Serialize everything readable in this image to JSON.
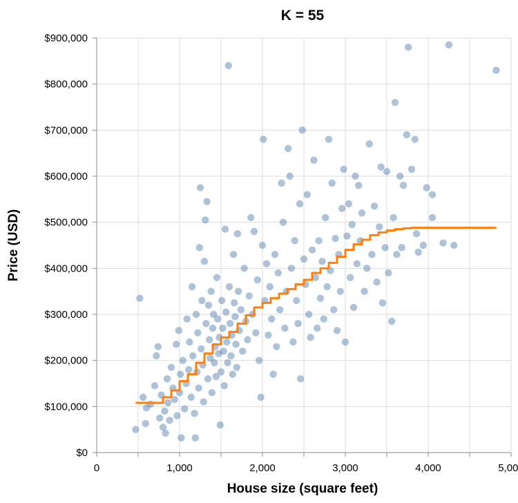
{
  "chart_data": {
    "type": "scatter",
    "title": "K = 55",
    "xlabel": "House size (square feet)",
    "ylabel": "Price (USD)",
    "xlim": [
      0,
      5000
    ],
    "ylim": [
      0,
      900000
    ],
    "grid": true,
    "x_ticks": [
      0,
      1000,
      2000,
      3000,
      4000,
      5000
    ],
    "x_tick_labels": [
      "0",
      "1,000",
      "2,000",
      "3,000",
      "4,000",
      "5,000"
    ],
    "y_ticks": [
      0,
      100000,
      200000,
      300000,
      400000,
      500000,
      600000,
      700000,
      800000,
      900000
    ],
    "y_tick_labels": [
      "$0",
      "$100,000",
      "$200,000",
      "$300,000",
      "$400,000",
      "$500,000",
      "$600,000",
      "$700,000",
      "$800,000",
      "$900,000"
    ],
    "colors": {
      "points": "#4c78a8",
      "line": "#ff7f0e",
      "grid": "#dddddd",
      "axis": "#888888"
    },
    "series": [
      {
        "type": "scatter",
        "points": [
          [
            470,
            50000
          ],
          [
            520,
            335000
          ],
          [
            560,
            120000
          ],
          [
            590,
            63000
          ],
          [
            600,
            97000
          ],
          [
            650,
            105000
          ],
          [
            700,
            145000
          ],
          [
            720,
            210000
          ],
          [
            740,
            230000
          ],
          [
            760,
            75000
          ],
          [
            780,
            125000
          ],
          [
            800,
            55000
          ],
          [
            820,
            90000
          ],
          [
            830,
            42000
          ],
          [
            850,
            160000
          ],
          [
            860,
            108000
          ],
          [
            880,
            70000
          ],
          [
            900,
            185000
          ],
          [
            920,
            140000
          ],
          [
            940,
            115000
          ],
          [
            960,
            235000
          ],
          [
            970,
            80000
          ],
          [
            990,
            265000
          ],
          [
            1000,
            130000
          ],
          [
            1010,
            170000
          ],
          [
            1020,
            32000
          ],
          [
            1040,
            200000
          ],
          [
            1060,
            95000
          ],
          [
            1080,
            150000
          ],
          [
            1090,
            290000
          ],
          [
            1110,
            180000
          ],
          [
            1120,
            240000
          ],
          [
            1140,
            120000
          ],
          [
            1150,
            360000
          ],
          [
            1160,
            210000
          ],
          [
            1180,
            85000
          ],
          [
            1190,
            32000
          ],
          [
            1200,
            300000
          ],
          [
            1210,
            175000
          ],
          [
            1220,
            260000
          ],
          [
            1230,
            140000
          ],
          [
            1240,
            445000
          ],
          [
            1250,
            575000
          ],
          [
            1260,
            225000
          ],
          [
            1270,
            330000
          ],
          [
            1280,
            190000
          ],
          [
            1290,
            110000
          ],
          [
            1300,
            415000
          ],
          [
            1310,
            505000
          ],
          [
            1320,
            280000
          ],
          [
            1330,
            545000
          ],
          [
            1340,
            160000
          ],
          [
            1350,
            320000
          ],
          [
            1360,
            245000
          ],
          [
            1370,
            205000
          ],
          [
            1380,
            350000
          ],
          [
            1390,
            130000
          ],
          [
            1400,
            270000
          ],
          [
            1410,
            300000
          ],
          [
            1420,
            195000
          ],
          [
            1430,
            230000
          ],
          [
            1440,
            165000
          ],
          [
            1450,
            380000
          ],
          [
            1460,
            290000
          ],
          [
            1470,
            215000
          ],
          [
            1480,
            250000
          ],
          [
            1490,
            60000
          ],
          [
            1500,
            175000
          ],
          [
            1510,
            330000
          ],
          [
            1520,
            270000
          ],
          [
            1530,
            220000
          ],
          [
            1540,
            145000
          ],
          [
            1550,
            485000
          ],
          [
            1560,
            305000
          ],
          [
            1570,
            240000
          ],
          [
            1580,
            195000
          ],
          [
            1590,
            840000
          ],
          [
            1600,
            360000
          ],
          [
            1610,
            280000
          ],
          [
            1620,
            210000
          ],
          [
            1630,
            255000
          ],
          [
            1640,
            170000
          ],
          [
            1650,
            430000
          ],
          [
            1660,
            325000
          ],
          [
            1670,
            295000
          ],
          [
            1680,
            235000
          ],
          [
            1690,
            185000
          ],
          [
            1700,
            475000
          ],
          [
            1710,
            350000
          ],
          [
            1720,
            265000
          ],
          [
            1740,
            310000
          ],
          [
            1760,
            220000
          ],
          [
            1780,
            400000
          ],
          [
            1800,
            285000
          ],
          [
            1820,
            245000
          ],
          [
            1840,
            340000
          ],
          [
            1860,
            510000
          ],
          [
            1880,
            300000
          ],
          [
            1900,
            480000
          ],
          [
            1920,
            260000
          ],
          [
            1940,
            375000
          ],
          [
            1960,
            200000
          ],
          [
            1980,
            120000
          ],
          [
            2000,
            450000
          ],
          [
            2010,
            680000
          ],
          [
            2030,
            330000
          ],
          [
            2050,
            410000
          ],
          [
            2070,
            255000
          ],
          [
            2090,
            360000
          ],
          [
            2110,
            290000
          ],
          [
            2130,
            170000
          ],
          [
            2150,
            430000
          ],
          [
            2170,
            230000
          ],
          [
            2190,
            390000
          ],
          [
            2210,
            310000
          ],
          [
            2230,
            585000
          ],
          [
            2250,
            500000
          ],
          [
            2270,
            270000
          ],
          [
            2290,
            350000
          ],
          [
            2310,
            660000
          ],
          [
            2330,
            600000
          ],
          [
            2350,
            400000
          ],
          [
            2370,
            240000
          ],
          [
            2390,
            460000
          ],
          [
            2410,
            330000
          ],
          [
            2430,
            280000
          ],
          [
            2450,
            540000
          ],
          [
            2460,
            160000
          ],
          [
            2480,
            700000
          ],
          [
            2500,
            420000
          ],
          [
            2520,
            365000
          ],
          [
            2540,
            560000
          ],
          [
            2560,
            300000
          ],
          [
            2580,
            250000
          ],
          [
            2600,
            440000
          ],
          [
            2620,
            635000
          ],
          [
            2640,
            380000
          ],
          [
            2660,
            270000
          ],
          [
            2680,
            460000
          ],
          [
            2700,
            335000
          ],
          [
            2720,
            415000
          ],
          [
            2740,
            290000
          ],
          [
            2760,
            510000
          ],
          [
            2780,
            360000
          ],
          [
            2800,
            680000
          ],
          [
            2820,
            395000
          ],
          [
            2840,
            585000
          ],
          [
            2860,
            310000
          ],
          [
            2880,
            465000
          ],
          [
            2900,
            265000
          ],
          [
            2920,
            430000
          ],
          [
            2940,
            350000
          ],
          [
            2960,
            530000
          ],
          [
            2980,
            615000
          ],
          [
            3000,
            240000
          ],
          [
            3020,
            470000
          ],
          [
            3040,
            540000
          ],
          [
            3060,
            380000
          ],
          [
            3080,
            495000
          ],
          [
            3100,
            315000
          ],
          [
            3120,
            600000
          ],
          [
            3140,
            410000
          ],
          [
            3160,
            580000
          ],
          [
            3180,
            460000
          ],
          [
            3200,
            520000
          ],
          [
            3230,
            350000
          ],
          [
            3260,
            400000
          ],
          [
            3290,
            670000
          ],
          [
            3320,
            430000
          ],
          [
            3350,
            535000
          ],
          [
            3380,
            370000
          ],
          [
            3410,
            490000
          ],
          [
            3430,
            620000
          ],
          [
            3450,
            325000
          ],
          [
            3480,
            445000
          ],
          [
            3500,
            610000
          ],
          [
            3520,
            390000
          ],
          [
            3560,
            285000
          ],
          [
            3580,
            510000
          ],
          [
            3600,
            760000
          ],
          [
            3620,
            430000
          ],
          [
            3660,
            600000
          ],
          [
            3680,
            445000
          ],
          [
            3700,
            580000
          ],
          [
            3740,
            690000
          ],
          [
            3760,
            880000
          ],
          [
            3800,
            615000
          ],
          [
            3840,
            680000
          ],
          [
            3860,
            475000
          ],
          [
            3880,
            435000
          ],
          [
            3940,
            450000
          ],
          [
            3980,
            575000
          ],
          [
            4050,
            510000
          ],
          [
            4050,
            560000
          ],
          [
            4180,
            455000
          ],
          [
            4250,
            885000
          ],
          [
            4310,
            450000
          ],
          [
            4820,
            830000
          ]
        ]
      },
      {
        "type": "line",
        "points": [
          [
            470,
            108000
          ],
          [
            700,
            108000
          ],
          [
            800,
            120000
          ],
          [
            900,
            135000
          ],
          [
            1000,
            155000
          ],
          [
            1100,
            170000
          ],
          [
            1200,
            195000
          ],
          [
            1300,
            215000
          ],
          [
            1400,
            235000
          ],
          [
            1500,
            250000
          ],
          [
            1600,
            262000
          ],
          [
            1700,
            280000
          ],
          [
            1800,
            298000
          ],
          [
            1900,
            315000
          ],
          [
            2000,
            325000
          ],
          [
            2100,
            335000
          ],
          [
            2200,
            345000
          ],
          [
            2300,
            355000
          ],
          [
            2400,
            365000
          ],
          [
            2500,
            375000
          ],
          [
            2600,
            390000
          ],
          [
            2700,
            400000
          ],
          [
            2800,
            412000
          ],
          [
            2900,
            425000
          ],
          [
            3000,
            440000
          ],
          [
            3100,
            452000
          ],
          [
            3200,
            462000
          ],
          [
            3300,
            472000
          ],
          [
            3400,
            478000
          ],
          [
            3500,
            482000
          ],
          [
            3600,
            485000
          ],
          [
            3700,
            487000
          ],
          [
            3800,
            488000
          ],
          [
            3900,
            488000
          ],
          [
            4000,
            488000
          ],
          [
            4500,
            488000
          ],
          [
            4820,
            488000
          ]
        ]
      }
    ]
  }
}
